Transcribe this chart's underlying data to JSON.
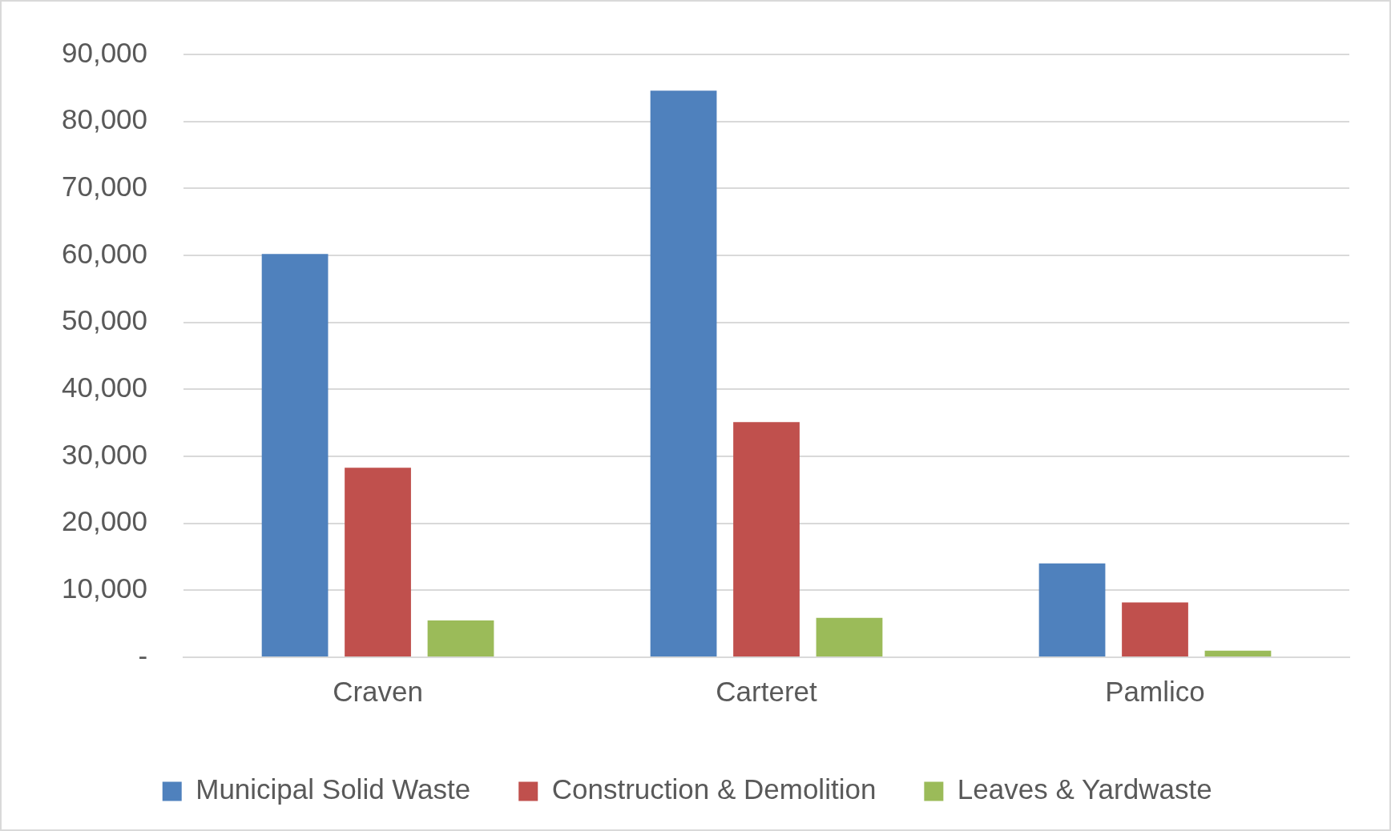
{
  "chart_data": {
    "type": "bar",
    "categories": [
      "Craven",
      "Carteret",
      "Pamlico"
    ],
    "series": [
      {
        "name": "Municipal Solid Waste",
        "color": "#4f81bd",
        "values": [
          60200,
          84600,
          14000
        ]
      },
      {
        "name": "Construction & Demolition",
        "color": "#c0504d",
        "values": [
          28300,
          35100,
          8200
        ]
      },
      {
        "name": "Leaves & Yardwaste",
        "color": "#9bbb59",
        "values": [
          5500,
          5900,
          1000
        ]
      }
    ],
    "ylim": [
      0,
      90000
    ],
    "yticks": [
      {
        "value": 0,
        "label": "-"
      },
      {
        "value": 10000,
        "label": "10,000"
      },
      {
        "value": 20000,
        "label": "20,000"
      },
      {
        "value": 30000,
        "label": "30,000"
      },
      {
        "value": 40000,
        "label": "40,000"
      },
      {
        "value": 50000,
        "label": "50,000"
      },
      {
        "value": 60000,
        "label": "60,000"
      },
      {
        "value": 70000,
        "label": "70,000"
      },
      {
        "value": 80000,
        "label": "80,000"
      },
      {
        "value": 90000,
        "label": "90,000"
      }
    ],
    "grid": "y",
    "legend": "bottom"
  }
}
